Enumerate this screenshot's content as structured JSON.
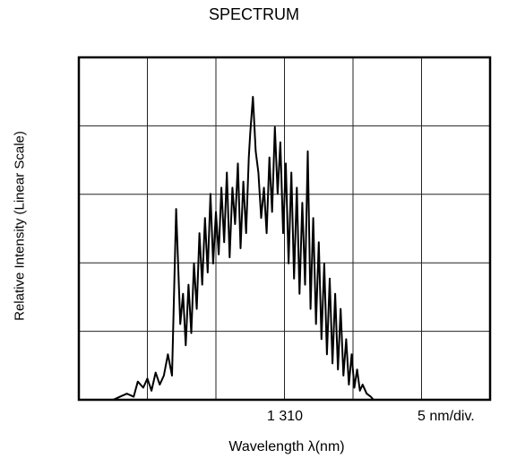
{
  "chart_data": {
    "type": "line",
    "title": "SPECTRUM",
    "xlabel": "Wavelength  λ(nm)",
    "ylabel": "Relative Intensity  (Linear Scale)",
    "x_center_label": "1 310",
    "x_scale_note": "5 nm/div.",
    "x_center": 1310,
    "nm_per_div": 5,
    "xlim": [
      1297.5,
      1327.5
    ],
    "ylim": [
      0,
      1
    ],
    "grid": true,
    "x_divisions": 6,
    "y_divisions": 5,
    "line_color": "#000000",
    "series": [
      {
        "x": [
          1300.0,
          1300.5,
          1301.0,
          1301.5,
          1301.8,
          1302.2,
          1302.5,
          1302.8,
          1303.1,
          1303.4,
          1303.7,
          1304.0,
          1304.3,
          1304.6,
          1304.9,
          1305.1,
          1305.3,
          1305.5,
          1305.7,
          1305.9,
          1306.1,
          1306.3,
          1306.5,
          1306.7,
          1306.9,
          1307.1,
          1307.3,
          1307.5,
          1307.7,
          1307.9,
          1308.1,
          1308.3,
          1308.5,
          1308.7,
          1308.9,
          1309.1,
          1309.3,
          1309.5,
          1309.7,
          1309.9,
          1310.0,
          1310.2,
          1310.4,
          1310.6,
          1310.8,
          1311.0,
          1311.2,
          1311.4,
          1311.6,
          1311.8,
          1312.0,
          1312.2,
          1312.4,
          1312.6,
          1312.8,
          1313.0,
          1313.2,
          1313.4,
          1313.6,
          1313.8,
          1314.0,
          1314.2,
          1314.4,
          1314.6,
          1314.8,
          1315.0,
          1315.2,
          1315.4,
          1315.6,
          1315.8,
          1316.0,
          1316.2,
          1316.4,
          1316.6,
          1316.8,
          1317.0,
          1317.2,
          1317.4,
          1317.6,
          1317.8,
          1318.0,
          1318.2,
          1318.5,
          1318.8,
          1319.0
        ],
        "y": [
          0.0,
          0.01,
          0.02,
          0.01,
          0.06,
          0.04,
          0.07,
          0.03,
          0.09,
          0.05,
          0.08,
          0.15,
          0.08,
          0.63,
          0.25,
          0.35,
          0.18,
          0.38,
          0.22,
          0.45,
          0.3,
          0.55,
          0.38,
          0.6,
          0.42,
          0.68,
          0.45,
          0.62,
          0.48,
          0.7,
          0.52,
          0.75,
          0.47,
          0.7,
          0.58,
          0.78,
          0.5,
          0.72,
          0.55,
          0.8,
          0.88,
          1.0,
          0.82,
          0.75,
          0.6,
          0.7,
          0.55,
          0.8,
          0.62,
          0.9,
          0.68,
          0.85,
          0.55,
          0.78,
          0.45,
          0.75,
          0.4,
          0.7,
          0.35,
          0.65,
          0.38,
          0.82,
          0.3,
          0.6,
          0.25,
          0.52,
          0.2,
          0.45,
          0.15,
          0.4,
          0.12,
          0.35,
          0.1,
          0.3,
          0.08,
          0.2,
          0.05,
          0.15,
          0.04,
          0.1,
          0.03,
          0.05,
          0.02,
          0.01,
          0.0
        ]
      }
    ]
  }
}
